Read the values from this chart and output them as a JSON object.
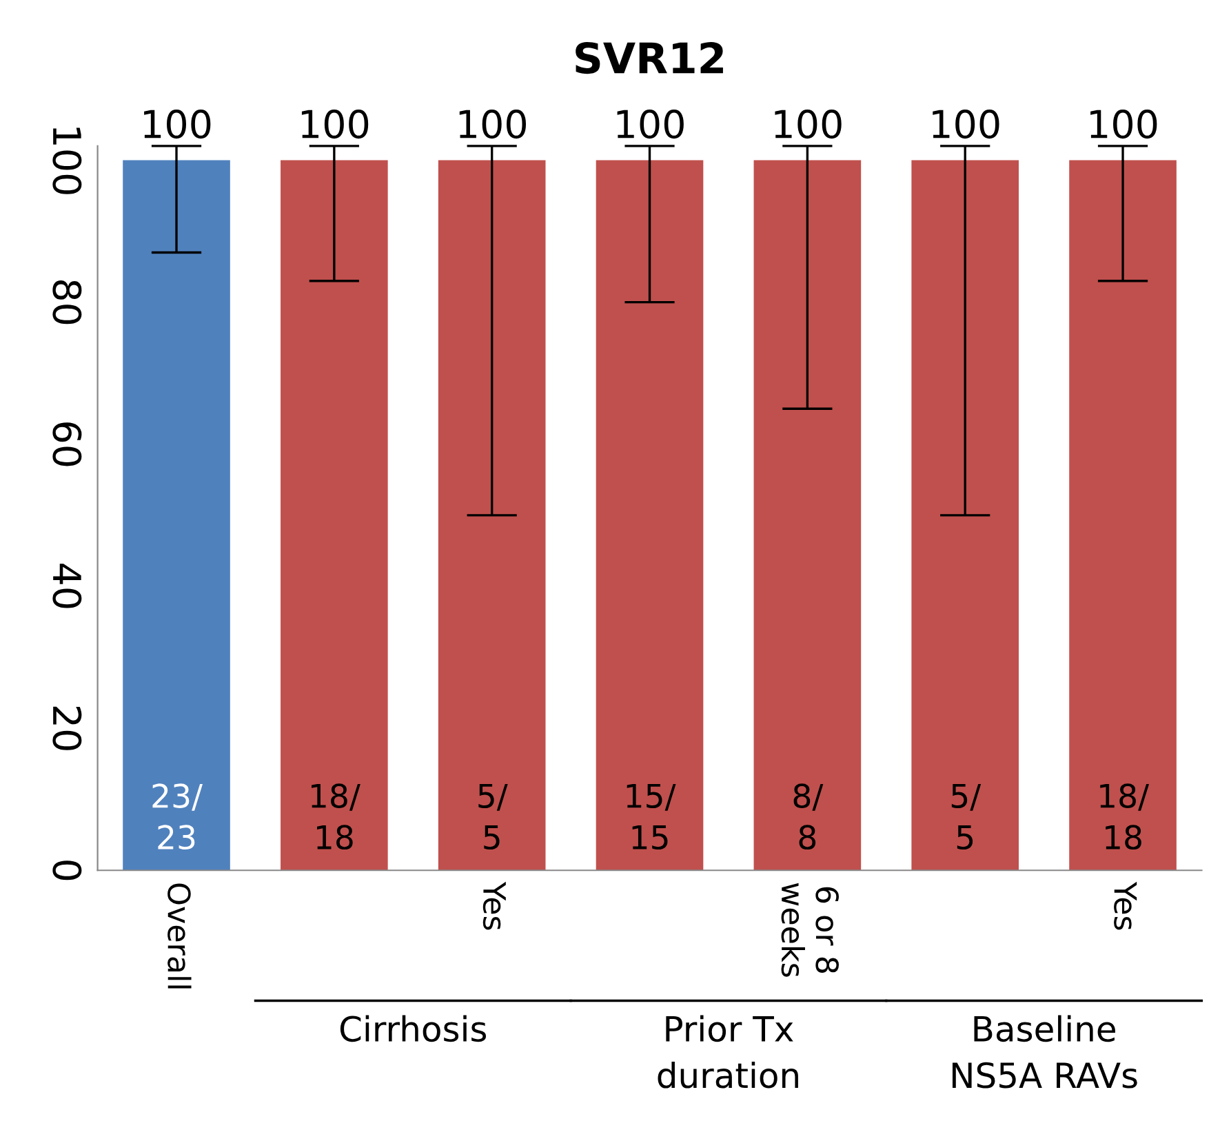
{
  "chart_data": {
    "type": "bar",
    "title": "SVR12",
    "categories": [
      "Overall",
      null,
      "Yes",
      null,
      "6 or 8\nweeks",
      null,
      "Yes"
    ],
    "values": [
      100,
      100,
      100,
      100,
      100,
      100,
      100
    ],
    "colors": [
      "#4f81bd",
      "#c0504d",
      "#c0504d",
      "#c0504d",
      "#c0504d",
      "#c0504d",
      "#c0504d"
    ],
    "errors": [
      [
        87,
        102
      ],
      [
        83,
        102
      ],
      [
        50,
        102
      ],
      [
        80,
        102
      ],
      [
        65,
        102
      ],
      [
        50,
        102
      ],
      [
        83,
        102
      ]
    ],
    "data_labels": true,
    "ylim": [
      0,
      102
    ],
    "yticks": [
      0,
      20,
      40,
      60,
      80,
      100
    ],
    "grid": false,
    "legend": false,
    "annotations": [
      "23/\n23",
      "18/\n18",
      "5/\n5",
      "15/\n15",
      "8/\n8",
      "5/\n5",
      "18/\n18",
      "Cirrhosis",
      "Prior Tx\nduration",
      "Baseline\nNS5A RAVs"
    ]
  }
}
